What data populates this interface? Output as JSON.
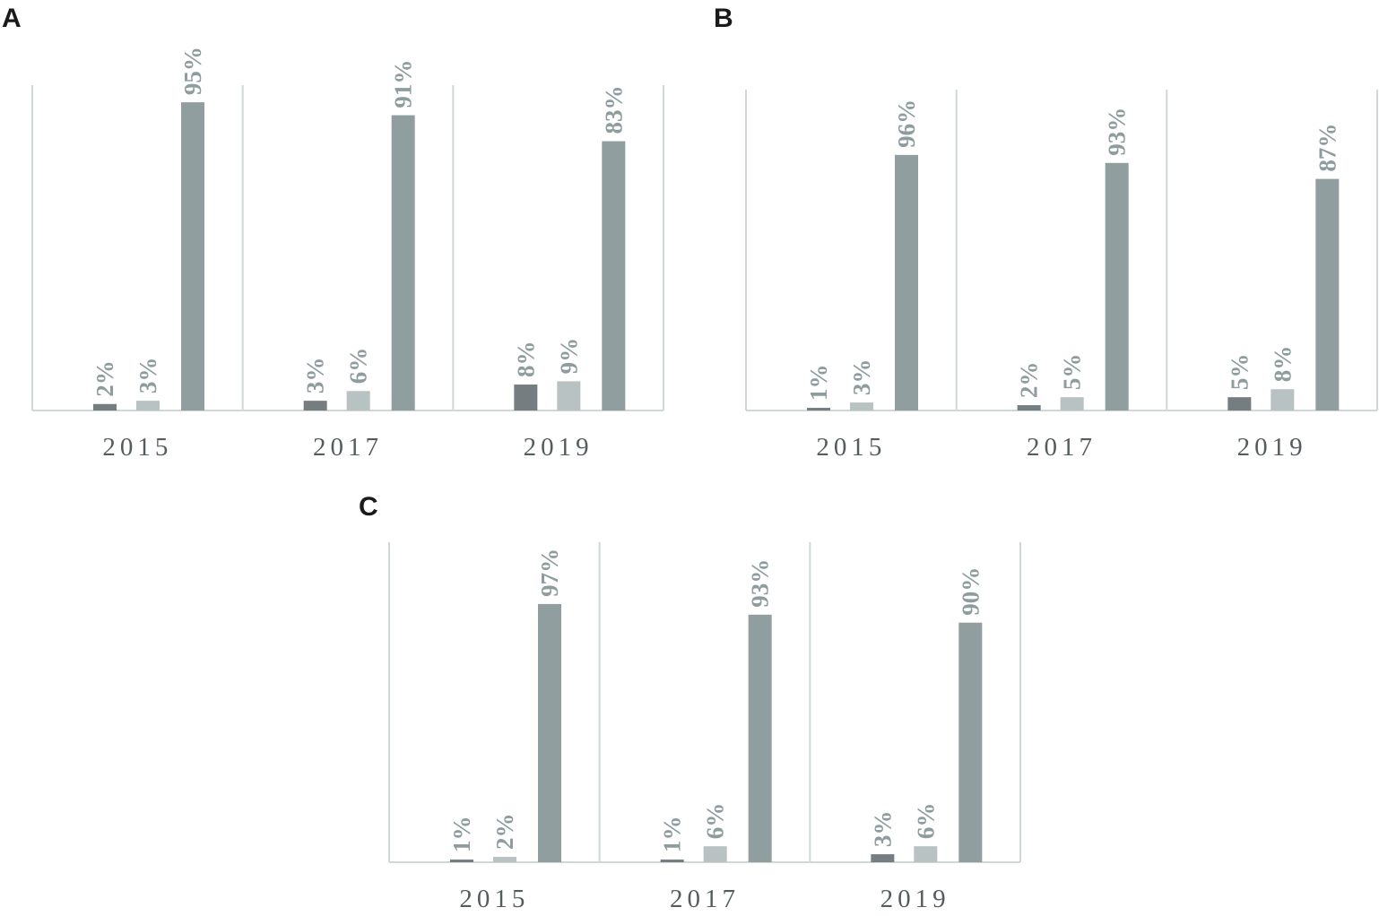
{
  "colors": {
    "series": [
      "#757d80",
      "#b9c2c2",
      "#909e9f"
    ],
    "axis": "#d0d8d6",
    "value_label": "#8e9c9e",
    "year_label": "#555c5e"
  },
  "chart_data": [
    {
      "type": "bar",
      "panel": "A",
      "categories": [
        "2015",
        "2017",
        "2019"
      ],
      "series": [
        {
          "values": [
            2,
            3,
            8
          ]
        },
        {
          "values": [
            3,
            6,
            9
          ]
        },
        {
          "values": [
            95,
            91,
            83
          ]
        }
      ],
      "labels": [
        [
          "2%",
          "3%",
          "95%"
        ],
        [
          "3%",
          "6%",
          "91%"
        ],
        [
          "8%",
          "9%",
          "83%"
        ]
      ],
      "ylim": [
        0,
        100
      ],
      "unit": "%",
      "grid": false,
      "legend": "none"
    },
    {
      "type": "bar",
      "panel": "B",
      "categories": [
        "2015",
        "2017",
        "2019"
      ],
      "series": [
        {
          "values": [
            1,
            2,
            5
          ]
        },
        {
          "values": [
            3,
            5,
            8
          ]
        },
        {
          "values": [
            96,
            93,
            87
          ]
        }
      ],
      "labels": [
        [
          "1%",
          "3%",
          "96%"
        ],
        [
          "2%",
          "5%",
          "93%"
        ],
        [
          "5%",
          "8%",
          "87%"
        ]
      ],
      "ylim": [
        0,
        100
      ],
      "unit": "%",
      "grid": false,
      "legend": "none"
    },
    {
      "type": "bar",
      "panel": "C",
      "categories": [
        "2015",
        "2017",
        "2019"
      ],
      "series": [
        {
          "values": [
            1,
            1,
            3
          ]
        },
        {
          "values": [
            2,
            6,
            6
          ]
        },
        {
          "values": [
            97,
            93,
            90
          ]
        }
      ],
      "labels": [
        [
          "1%",
          "2%",
          "97%"
        ],
        [
          "1%",
          "6%",
          "93%"
        ],
        [
          "3%",
          "6%",
          "90%"
        ]
      ],
      "ylim": [
        0,
        100
      ],
      "unit": "%",
      "grid": false,
      "legend": "none"
    }
  ]
}
